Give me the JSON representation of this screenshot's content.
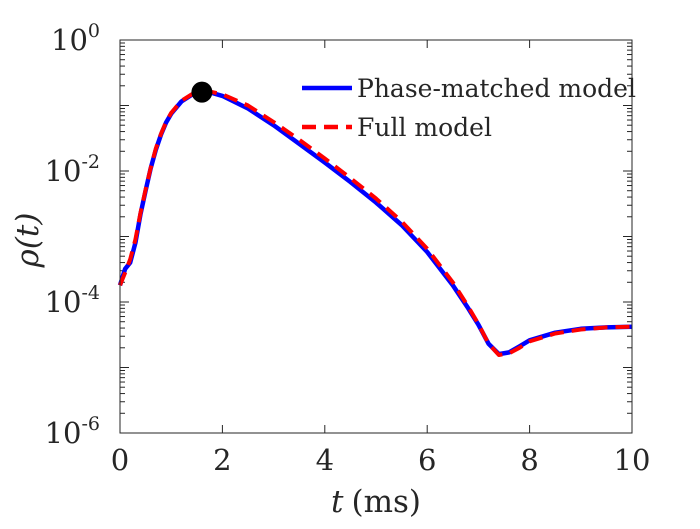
{
  "chart_data": {
    "type": "line",
    "title": "",
    "xlabel_var": "t",
    "xlabel_unit": "(ms)",
    "ylabel": "ρ(t)",
    "xlim": [
      0,
      10
    ],
    "ylim": [
      1e-06,
      1
    ],
    "y_scale": "log",
    "x_ticks": [
      "0",
      "2",
      "4",
      "6",
      "8",
      "10"
    ],
    "y_ticks": [
      {
        "base": "10",
        "exp": "0",
        "value": 1
      },
      {
        "base": "10",
        "exp": "-2",
        "value": 0.01
      },
      {
        "base": "10",
        "exp": "-4",
        "value": 0.0001
      },
      {
        "base": "10",
        "exp": "-6",
        "value": 1e-06
      }
    ],
    "legend_position": "top-right",
    "series": [
      {
        "name": "Phase-matched model",
        "color": "#0000ff",
        "style": "solid",
        "x": [
          0,
          0.1,
          0.2,
          0.3,
          0.4,
          0.5,
          0.6,
          0.7,
          0.8,
          0.9,
          1.0,
          1.2,
          1.4,
          1.6,
          1.8,
          2.0,
          2.5,
          3.0,
          3.5,
          4.0,
          4.5,
          5.0,
          5.5,
          6.0,
          6.5,
          6.8,
          7.0,
          7.2,
          7.4,
          7.6,
          7.8,
          8.0,
          8.5,
          9.0,
          9.5,
          10.0
        ],
        "y": [
          0.00018,
          0.00032,
          0.0004,
          0.0008,
          0.0022,
          0.005,
          0.011,
          0.021,
          0.036,
          0.055,
          0.075,
          0.115,
          0.145,
          0.158,
          0.155,
          0.14,
          0.09,
          0.05,
          0.026,
          0.0135,
          0.0068,
          0.0033,
          0.0015,
          0.00058,
          0.00018,
          8e-05,
          4.5e-05,
          2.3e-05,
          1.6e-05,
          1.7e-05,
          2.1e-05,
          2.6e-05,
          3.4e-05,
          3.9e-05,
          4.1e-05,
          4.2e-05
        ]
      },
      {
        "name": "Full model",
        "color": "#ff0000",
        "style": "dashed",
        "x": [
          0,
          0.1,
          0.2,
          0.3,
          0.4,
          0.5,
          0.6,
          0.7,
          0.8,
          0.9,
          1.0,
          1.2,
          1.4,
          1.6,
          1.8,
          2.0,
          2.5,
          3.0,
          3.5,
          4.0,
          4.5,
          5.0,
          5.5,
          6.0,
          6.5,
          6.8,
          7.0,
          7.2,
          7.4,
          7.6,
          7.8,
          8.0,
          8.5,
          9.0,
          9.5,
          10.0
        ],
        "y": [
          0.00018,
          0.00028,
          0.00045,
          0.0009,
          0.0023,
          0.0052,
          0.0112,
          0.022,
          0.037,
          0.056,
          0.077,
          0.118,
          0.148,
          0.162,
          0.16,
          0.148,
          0.1,
          0.056,
          0.03,
          0.0155,
          0.0078,
          0.0038,
          0.0017,
          0.00065,
          0.0002,
          8.5e-05,
          4.6e-05,
          2.3e-05,
          1.55e-05,
          1.65e-05,
          2e-05,
          2.5e-05,
          3.3e-05,
          3.8e-05,
          4.1e-05,
          4.2e-05
        ]
      }
    ],
    "marker": {
      "x": 1.6,
      "y": 0.16,
      "color": "#000000"
    }
  }
}
